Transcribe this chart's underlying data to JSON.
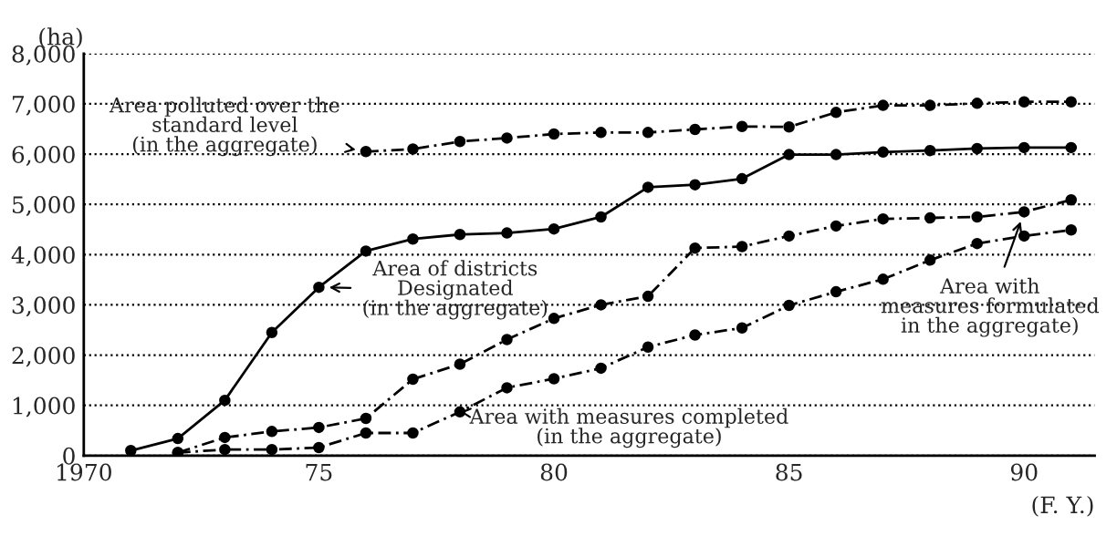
{
  "chart_data": {
    "type": "line",
    "ylabel": "(ha)",
    "xlabel": "(F. Y.)",
    "x": [
      1971,
      1972,
      1973,
      1974,
      1975,
      1976,
      1977,
      1978,
      1979,
      1980,
      1981,
      1982,
      1983,
      1984,
      1985,
      1986,
      1987,
      1988,
      1989,
      1990,
      1991
    ],
    "series": [
      {
        "color": "#000000",
        "marker": "circle",
        "line_style": "dashed",
        "values": [
          null,
          null,
          null,
          null,
          null,
          6050,
          6100,
          6250,
          6320,
          6400,
          6430,
          6430,
          6490,
          6550,
          6540,
          6830,
          6970,
          6970,
          7010,
          7040,
          7040
        ]
      },
      {
        "color": "#000000",
        "marker": "circle",
        "line_style": "solid",
        "values": [
          100,
          340,
          1100,
          2450,
          3350,
          4070,
          4310,
          4400,
          4430,
          4510,
          4750,
          5340,
          5390,
          5510,
          5990,
          5990,
          6040,
          6070,
          6110,
          6130,
          6130
        ]
      },
      {
        "color": "#000000",
        "marker": "circle",
        "line_style": "dashed",
        "values": [
          null,
          60,
          360,
          480,
          560,
          740,
          1520,
          1820,
          2310,
          2730,
          3000,
          3170,
          4130,
          4160,
          4370,
          4570,
          4710,
          4730,
          4750,
          4850,
          5090
        ]
      },
      {
        "color": "#000000",
        "marker": "circle",
        "line_style": "dashed",
        "values": [
          null,
          60,
          120,
          120,
          160,
          450,
          450,
          870,
          1350,
          1530,
          1740,
          2160,
          2400,
          2540,
          2990,
          3260,
          3510,
          3890,
          4220,
          4370,
          4490
        ]
      }
    ],
    "xlim": [
      1970,
      1991.5
    ],
    "xticks": [
      {
        "value": 1970,
        "label": "1970"
      },
      {
        "value": 1975,
        "label": "75"
      },
      {
        "value": 1980,
        "label": "80"
      },
      {
        "value": 1985,
        "label": "85"
      },
      {
        "value": 1990,
        "label": "90"
      }
    ],
    "ylim": [
      0,
      8000
    ],
    "yticks": [
      0,
      {
        "value": 1000,
        "label": "1,000"
      },
      {
        "value": 2000,
        "label": "2,000"
      },
      {
        "value": 3000,
        "label": "3,000"
      },
      {
        "value": 4000,
        "label": "4,000"
      },
      {
        "value": 5000,
        "label": "5,000"
      },
      {
        "value": 6000,
        "label": "6,000"
      },
      {
        "value": 7000,
        "label": "7,000"
      },
      {
        "value": 8000,
        "label": "8,000"
      }
    ],
    "grid": "y",
    "annotations": [
      {
        "text": "Area polluted over the\nstandard level\n(in the aggregate)",
        "x": 1976,
        "y": 6050
      },
      {
        "text": "Area of districts\nDesignated\n(in the aggregate)",
        "x": 1975,
        "y": 3350
      },
      {
        "text": "Area with\nmeasures formulated\nin the aggregate)",
        "x": 1990,
        "y": 4850
      },
      {
        "text": "Area with measures completed\n(in the aggregate)",
        "x": 1978,
        "y": 870
      }
    ]
  }
}
